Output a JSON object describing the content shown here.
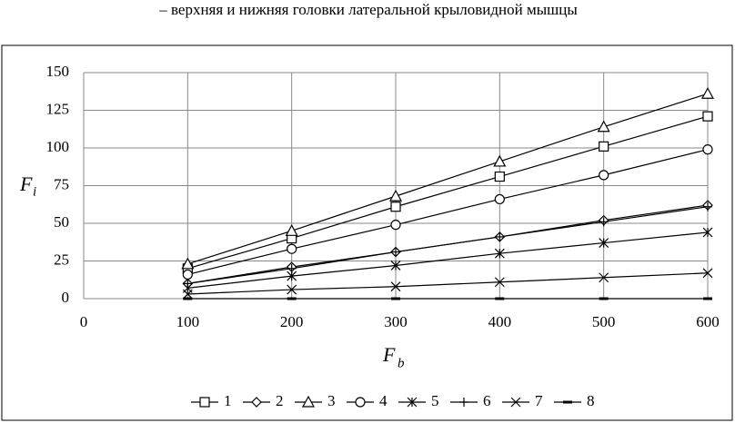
{
  "chart_data": {
    "type": "line",
    "caption": "– верхняя и нижняя головки латеральной крыловидной мышцы",
    "xlabel": "F",
    "xlabel_subscript": "b",
    "ylabel": "F",
    "ylabel_subscript": "i",
    "x": [
      100,
      200,
      300,
      400,
      500,
      600
    ],
    "xlim": [
      0,
      600
    ],
    "xticks": [
      0,
      100,
      200,
      300,
      400,
      500,
      600
    ],
    "ylim": [
      0,
      150
    ],
    "yticks": [
      0,
      25,
      50,
      75,
      100,
      125,
      150
    ],
    "grid": true,
    "legend": "bottom",
    "series": [
      {
        "name": "1",
        "color": "#000000",
        "marker": "square",
        "values": [
          20,
          40,
          61,
          81,
          101,
          121
        ]
      },
      {
        "name": "2",
        "color": "#000000",
        "marker": "diamond",
        "values": [
          10,
          21,
          31,
          41,
          52,
          62
        ]
      },
      {
        "name": "3",
        "color": "#000000",
        "marker": "triangle",
        "values": [
          23,
          45,
          68,
          91,
          114,
          136
        ]
      },
      {
        "name": "4",
        "color": "#000000",
        "marker": "circle",
        "values": [
          16,
          33,
          49,
          66,
          82,
          99
        ]
      },
      {
        "name": "5",
        "color": "#000000",
        "marker": "asterisk",
        "values": [
          7,
          15,
          22,
          30,
          37,
          44
        ]
      },
      {
        "name": "6",
        "color": "#000000",
        "marker": "plus",
        "values": [
          10,
          20,
          31,
          41,
          51,
          61
        ]
      },
      {
        "name": "7",
        "color": "#000000",
        "marker": "cross",
        "values": [
          3,
          6,
          8,
          11,
          14,
          17
        ]
      },
      {
        "name": "8",
        "color": "#000000",
        "marker": "dash",
        "values": [
          0,
          0,
          0,
          0,
          0,
          0
        ]
      }
    ]
  }
}
